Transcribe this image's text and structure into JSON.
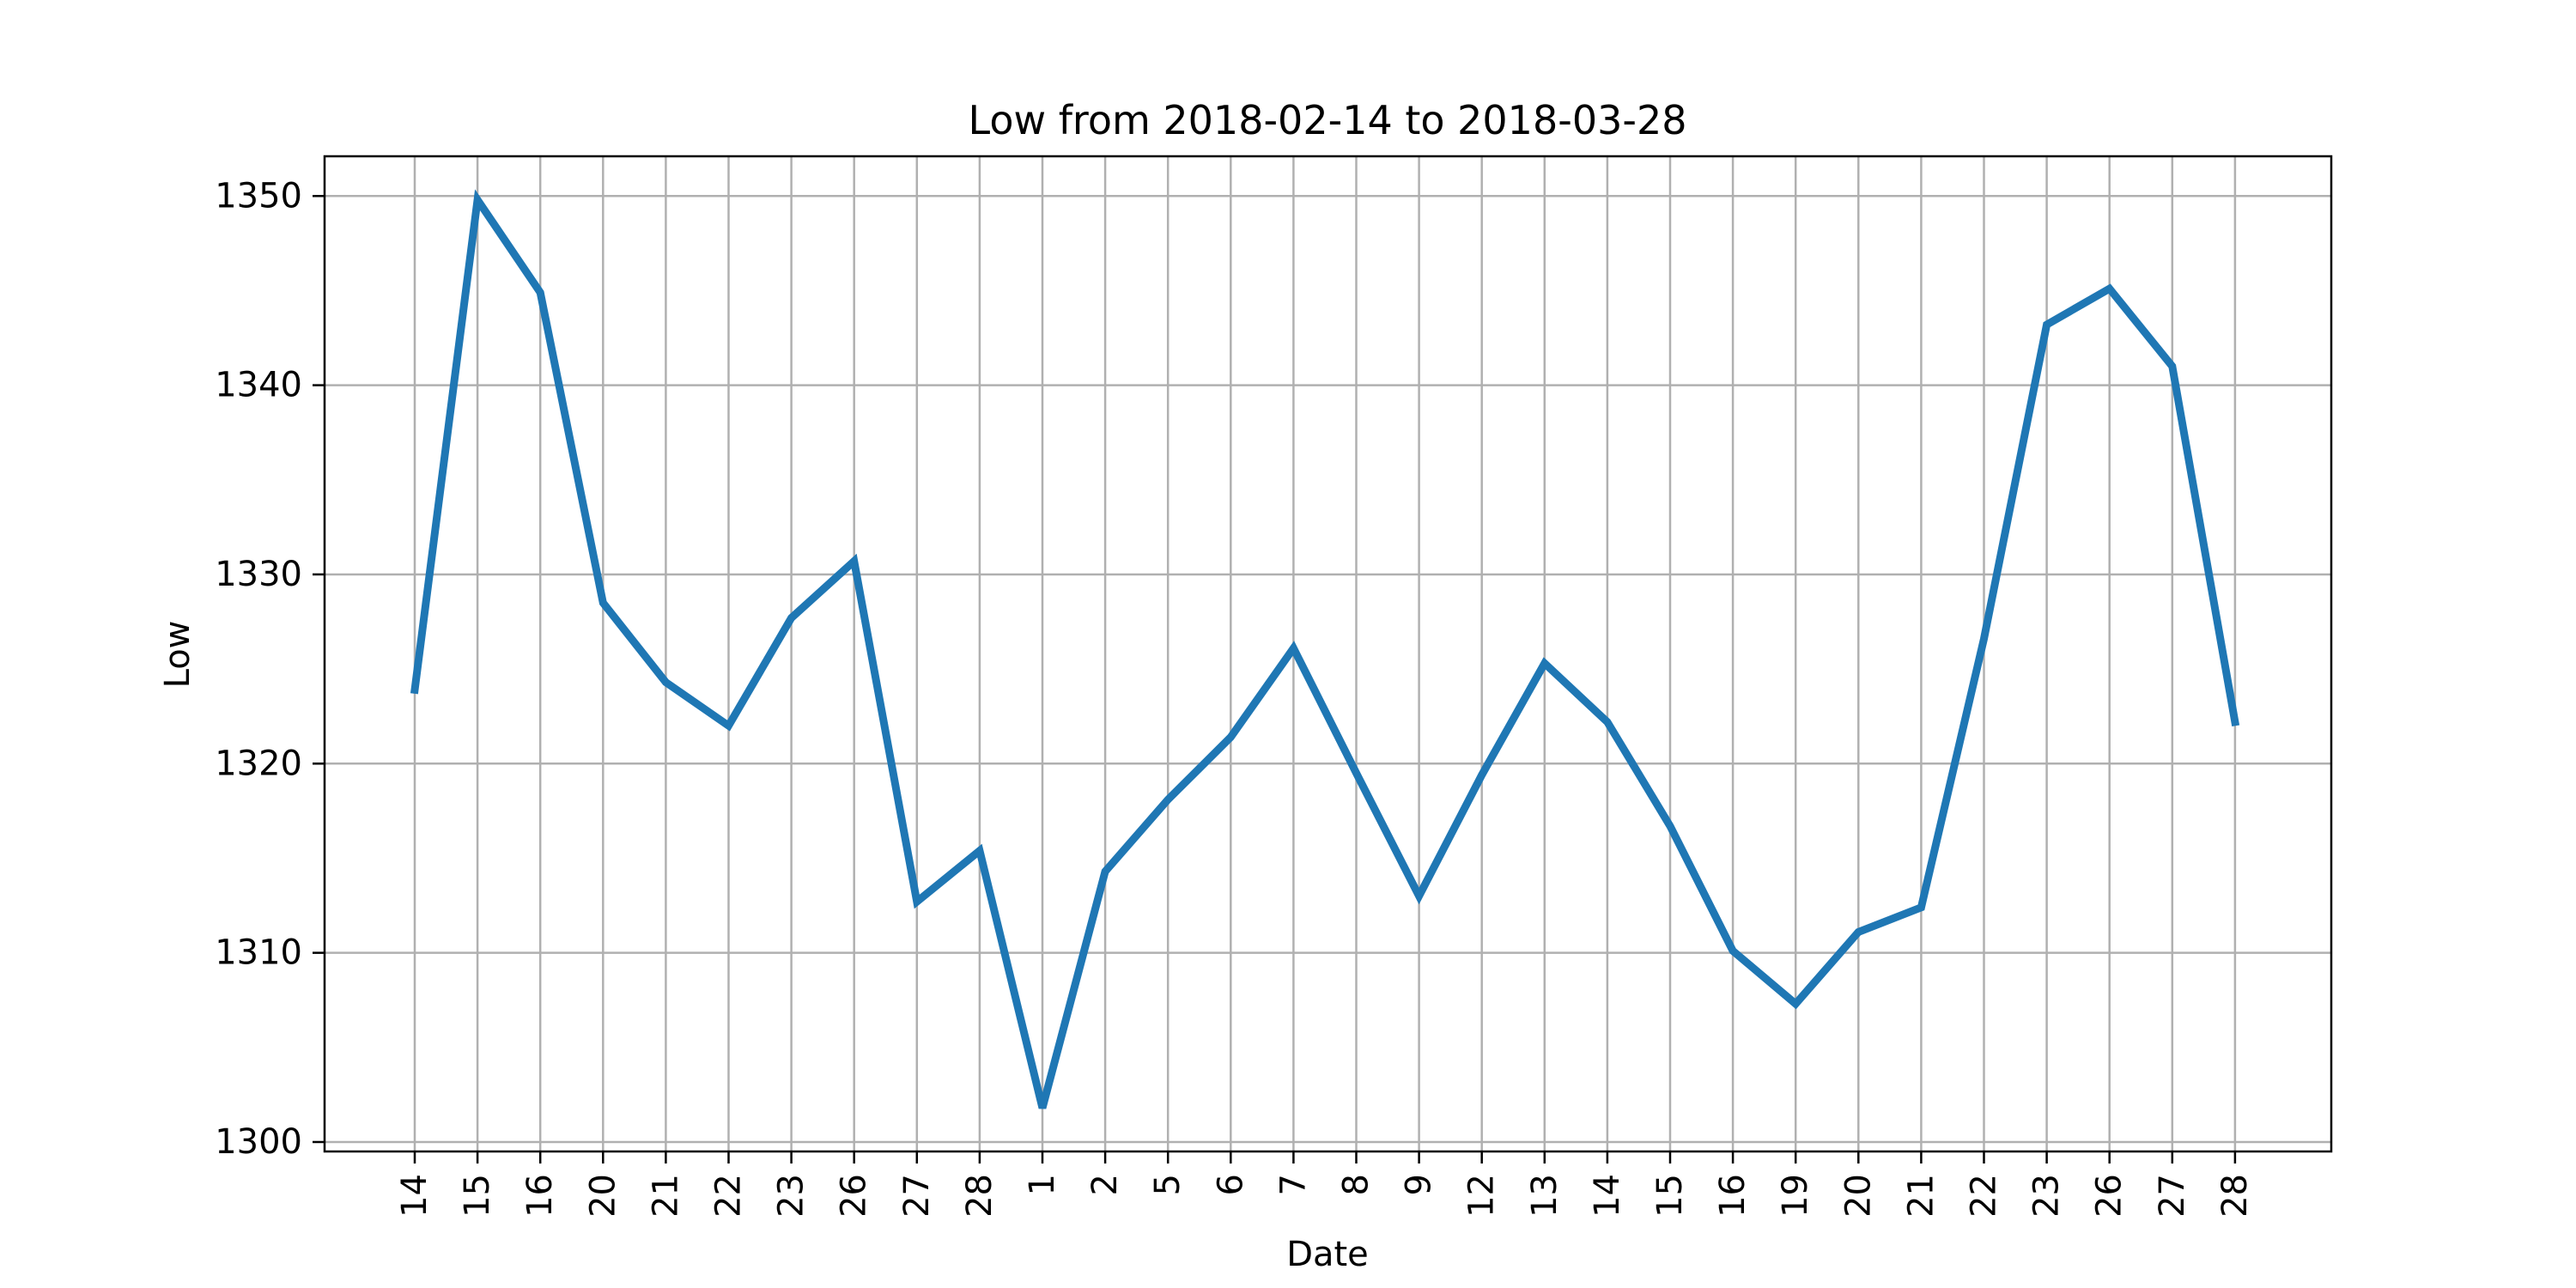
{
  "chart_data": {
    "type": "line",
    "title": "Low from 2018-02-14 to 2018-03-28",
    "xlabel": "Date",
    "ylabel": "Low",
    "x_dates": [
      "2018-02-14",
      "2018-02-15",
      "2018-02-16",
      "2018-02-20",
      "2018-02-21",
      "2018-02-22",
      "2018-02-23",
      "2018-02-26",
      "2018-02-27",
      "2018-02-28",
      "2018-03-01",
      "2018-03-02",
      "2018-03-05",
      "2018-03-06",
      "2018-03-07",
      "2018-03-08",
      "2018-03-09",
      "2018-03-12",
      "2018-03-13",
      "2018-03-14",
      "2018-03-15",
      "2018-03-16",
      "2018-03-19",
      "2018-03-20",
      "2018-03-21",
      "2018-03-22",
      "2018-03-23",
      "2018-03-26",
      "2018-03-27",
      "2018-03-28"
    ],
    "x_tick_labels": [
      "14",
      "15",
      "16",
      "20",
      "21",
      "22",
      "23",
      "26",
      "27",
      "28",
      "1",
      "2",
      "5",
      "6",
      "7",
      "8",
      "9",
      "12",
      "13",
      "14",
      "15",
      "16",
      "19",
      "20",
      "21",
      "22",
      "23",
      "26",
      "27",
      "28"
    ],
    "series": [
      {
        "values": [
          1323.9,
          1349.8,
          1344.9,
          1328.5,
          1324.3,
          1322.0,
          1327.7,
          1330.7,
          1312.7,
          1315.4,
          1301.8,
          1314.3,
          1318.1,
          1321.4,
          1326.1,
          1319.5,
          1313.0,
          1319.4,
          1325.3,
          1322.2,
          1316.7,
          1310.1,
          1307.3,
          1311.1,
          1312.4,
          1326.6,
          1343.2,
          1345.1,
          1341.0,
          1322.2
        ],
        "color": "#1f77b4"
      }
    ],
    "ylim": [
      1299.5,
      1352.1
    ],
    "y_ticks": [
      1300,
      1310,
      1320,
      1330,
      1340,
      1350
    ],
    "grid": true
  }
}
